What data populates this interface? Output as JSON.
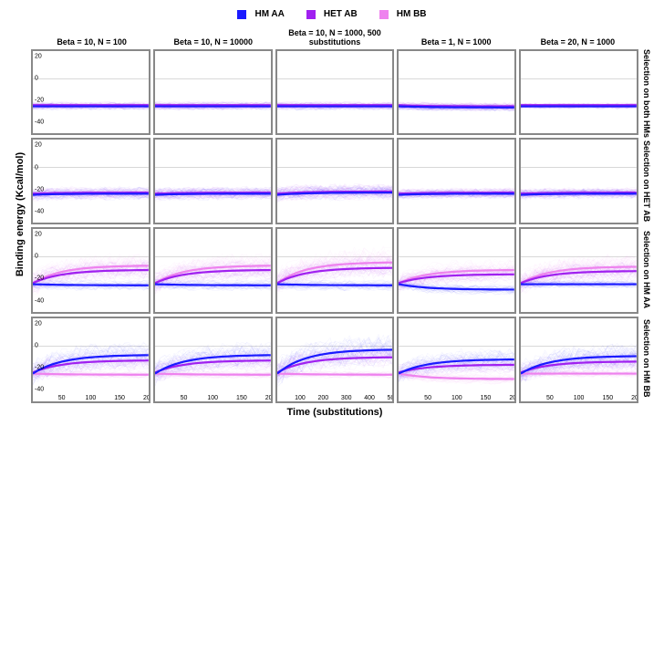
{
  "legend": {
    "items": [
      {
        "label": "HM AA",
        "color": "#1a1aff"
      },
      {
        "label": "HET AB",
        "color": "#a020f0"
      },
      {
        "label": "HM BB",
        "color": "#ee82ee"
      }
    ]
  },
  "axes": {
    "ylabel": "Binding energy (Kcal/mol)",
    "xlabel": "Time (substitutions)",
    "ylim": [
      -50,
      25
    ],
    "yticks": [
      -40,
      -20,
      0,
      20
    ],
    "xlim_default": [
      0,
      200
    ],
    "xticks_default": [
      50,
      100,
      150,
      200
    ],
    "xlim_col3": [
      0,
      500
    ],
    "xticks_col3": [
      100,
      200,
      300,
      400,
      500
    ],
    "zeroline_color": "#666666",
    "panel_border": "#888888",
    "background": "#ffffff",
    "tick_fontsize": 7,
    "label_fontsize": 11
  },
  "columns": [
    {
      "title": "Beta = 10, N = 100",
      "xmax": 200
    },
    {
      "title": "Beta = 10, N = 10000",
      "xmax": 200
    },
    {
      "title": "Beta = 10, N = 1000, 500 substitutions",
      "xmax": 500
    },
    {
      "title": "Beta = 1, N = 1000",
      "xmax": 200
    },
    {
      "title": "Beta = 20, N = 1000",
      "xmax": 200
    }
  ],
  "rows": [
    {
      "title": "Selection on both HMs"
    },
    {
      "title": "Selection on HET AB"
    },
    {
      "title": "Selection on HM AA"
    },
    {
      "title": "Selection on HM BB"
    }
  ],
  "series_colors": {
    "AA": "#1a1aff",
    "AB": "#a020f0",
    "BB": "#ee82ee"
  },
  "cloud_opacity": 0.06,
  "mean_linewidth": 2.2,
  "cloud_linewidth": 0.5,
  "n_traces": 40,
  "panels": [
    [
      {
        "AA": {
          "start": -25,
          "end": -25,
          "spread": 3
        },
        "AB": {
          "start": -24,
          "end": -24,
          "spread": 3
        },
        "BB": {
          "start": -25,
          "end": -25,
          "spread": 3
        }
      },
      {
        "AA": {
          "start": -25,
          "end": -25,
          "spread": 3
        },
        "AB": {
          "start": -24,
          "end": -24,
          "spread": 3
        },
        "BB": {
          "start": -25,
          "end": -25,
          "spread": 3
        }
      },
      {
        "AA": {
          "start": -25,
          "end": -25,
          "spread": 3
        },
        "AB": {
          "start": -24,
          "end": -24,
          "spread": 3
        },
        "BB": {
          "start": -25,
          "end": -25,
          "spread": 3
        }
      },
      {
        "AA": {
          "start": -25,
          "end": -26,
          "spread": 3
        },
        "AB": {
          "start": -24,
          "end": -25,
          "spread": 3
        },
        "BB": {
          "start": -25,
          "end": -26,
          "spread": 3
        }
      },
      {
        "AA": {
          "start": -25,
          "end": -25,
          "spread": 2
        },
        "AB": {
          "start": -24,
          "end": -24,
          "spread": 2
        },
        "BB": {
          "start": -25,
          "end": -25,
          "spread": 2
        }
      }
    ],
    [
      {
        "AA": {
          "start": -25,
          "end": -24,
          "spread": 5
        },
        "AB": {
          "start": -24,
          "end": -23,
          "spread": 5
        },
        "BB": {
          "start": -25,
          "end": -24,
          "spread": 5
        }
      },
      {
        "AA": {
          "start": -25,
          "end": -24,
          "spread": 5
        },
        "AB": {
          "start": -24,
          "end": -23,
          "spread": 5
        },
        "BB": {
          "start": -25,
          "end": -24,
          "spread": 5
        }
      },
      {
        "AA": {
          "start": -25,
          "end": -23,
          "spread": 6
        },
        "AB": {
          "start": -24,
          "end": -22,
          "spread": 6
        },
        "BB": {
          "start": -25,
          "end": -23,
          "spread": 6
        }
      },
      {
        "AA": {
          "start": -25,
          "end": -24,
          "spread": 4
        },
        "AB": {
          "start": -24,
          "end": -23,
          "spread": 4
        },
        "BB": {
          "start": -25,
          "end": -24,
          "spread": 4
        }
      },
      {
        "AA": {
          "start": -25,
          "end": -24,
          "spread": 4
        },
        "AB": {
          "start": -24,
          "end": -23,
          "spread": 4
        },
        "BB": {
          "start": -25,
          "end": -24,
          "spread": 4
        }
      }
    ],
    [
      {
        "AA": {
          "start": -25,
          "end": -26,
          "spread": 4
        },
        "AB": {
          "start": -24,
          "end": -12,
          "spread": 8
        },
        "BB": {
          "start": -24,
          "end": -8,
          "spread": 10
        }
      },
      {
        "AA": {
          "start": -25,
          "end": -26,
          "spread": 4
        },
        "AB": {
          "start": -24,
          "end": -12,
          "spread": 8
        },
        "BB": {
          "start": -24,
          "end": -8,
          "spread": 10
        }
      },
      {
        "AA": {
          "start": -25,
          "end": -26,
          "spread": 4
        },
        "AB": {
          "start": -24,
          "end": -10,
          "spread": 9
        },
        "BB": {
          "start": -24,
          "end": -5,
          "spread": 12
        }
      },
      {
        "AA": {
          "start": -25,
          "end": -30,
          "spread": 4
        },
        "AB": {
          "start": -24,
          "end": -16,
          "spread": 7
        },
        "BB": {
          "start": -24,
          "end": -12,
          "spread": 9
        }
      },
      {
        "AA": {
          "start": -25,
          "end": -25,
          "spread": 3
        },
        "AB": {
          "start": -24,
          "end": -13,
          "spread": 8
        },
        "BB": {
          "start": -24,
          "end": -9,
          "spread": 10
        }
      }
    ],
    [
      {
        "AA": {
          "start": -25,
          "end": -8,
          "spread": 10
        },
        "AB": {
          "start": -24,
          "end": -13,
          "spread": 8
        },
        "BB": {
          "start": -25,
          "end": -26,
          "spread": 3
        }
      },
      {
        "AA": {
          "start": -25,
          "end": -8,
          "spread": 10
        },
        "AB": {
          "start": -24,
          "end": -13,
          "spread": 8
        },
        "BB": {
          "start": -25,
          "end": -26,
          "spread": 3
        }
      },
      {
        "AA": {
          "start": -25,
          "end": -3,
          "spread": 12
        },
        "AB": {
          "start": -24,
          "end": -10,
          "spread": 9
        },
        "BB": {
          "start": -25,
          "end": -26,
          "spread": 3
        }
      },
      {
        "AA": {
          "start": -25,
          "end": -12,
          "spread": 9
        },
        "AB": {
          "start": -24,
          "end": -17,
          "spread": 7
        },
        "BB": {
          "start": -25,
          "end": -30,
          "spread": 4
        }
      },
      {
        "AA": {
          "start": -25,
          "end": -9,
          "spread": 10
        },
        "AB": {
          "start": -24,
          "end": -14,
          "spread": 8
        },
        "BB": {
          "start": -25,
          "end": -25,
          "spread": 3
        }
      }
    ]
  ]
}
